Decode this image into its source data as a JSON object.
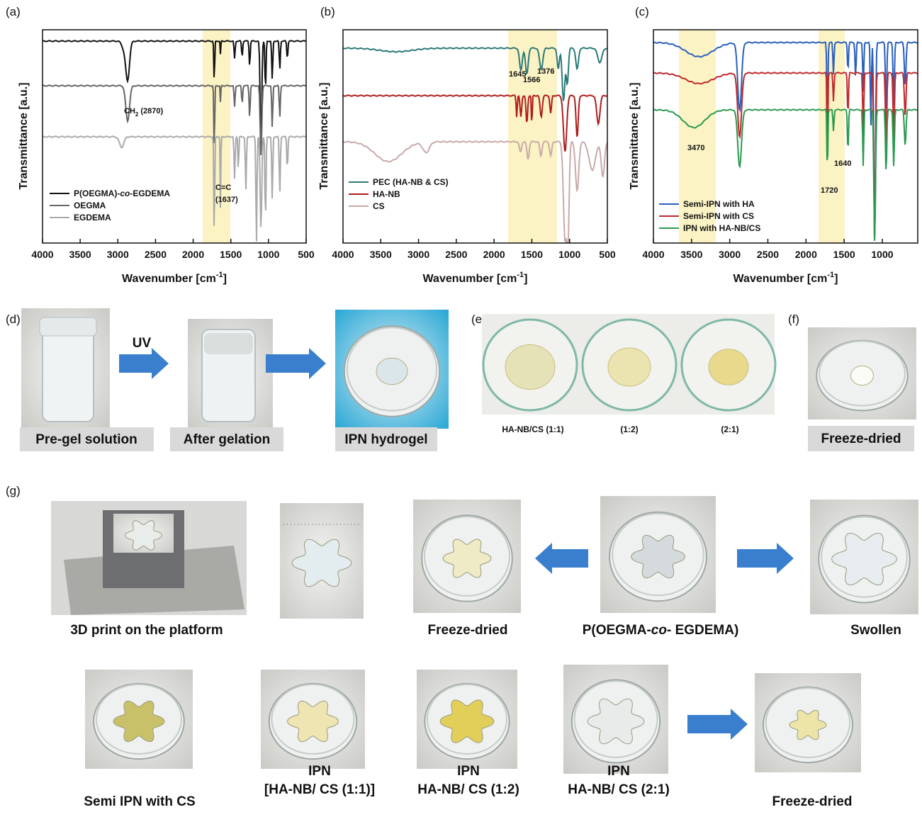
{
  "panels": [
    {
      "label": "(a)",
      "y_label": "Transmittance [a.u.]",
      "x_label": "Wavenumber [cm",
      "x_label_sup": "-1",
      "x_label_end": "]",
      "x_ticks": [
        4000,
        3500,
        3000,
        2500,
        2000,
        1500,
        1000,
        500
      ],
      "annotations": [
        [
          "CH",
          "2",
          " (2870)"
        ],
        [
          "C=C"
        ],
        [
          "(1637)"
        ]
      ],
      "legend": [
        [
          "P(OEGMA)-",
          "co",
          "-EGDEMA"
        ],
        [
          "OEGMA"
        ],
        [
          "EGDEMA"
        ]
      ]
    },
    {
      "label": "(b)",
      "y_label": "Transmittance [a.u.]",
      "x_label": "Wavenumber [cm",
      "x_label_sup": "-1",
      "x_label_end": "]",
      "x_ticks": [
        4000,
        3500,
        3000,
        2500,
        2000,
        1500,
        1000,
        500
      ],
      "annotations": [
        [
          "1645"
        ],
        [
          "1566"
        ],
        [
          "1376"
        ]
      ],
      "legend": [
        [
          "PEC (HA-NB & CS)"
        ],
        [
          "HA-NB"
        ],
        [
          "CS"
        ]
      ]
    },
    {
      "label": "(c)",
      "y_label": "Transmittance [a.u.]",
      "x_label": "Wavenumber [cm",
      "x_label_sup": "-1",
      "x_label_end": "]",
      "x_ticks": [
        4000,
        3500,
        3000,
        2500,
        2000,
        1500,
        1000
      ],
      "annotations": [
        [
          "3470"
        ],
        [
          "1640"
        ],
        [
          "1720"
        ]
      ],
      "legend": [
        [
          "Semi-IPN with HA"
        ],
        [
          "Semi-IPN with CS"
        ],
        [
          "IPN with HA-NB/CS"
        ]
      ]
    }
  ],
  "panel_d": {
    "label": "(d)",
    "arrow_label": "UV",
    "captions": [
      "Pre-gel solution",
      "After gelation",
      "IPN hydrogel"
    ]
  },
  "panel_e": {
    "label": "(e)",
    "captions": [
      "HA-NB/CS (1:1)",
      "(1:2)",
      "(2:1)"
    ]
  },
  "panel_f": {
    "label": "(f)",
    "caption": "Freeze-dried"
  },
  "panel_g": {
    "label": "(g)",
    "top_captions": [
      [
        "3D print on the platform"
      ],
      [
        "Freeze-dried"
      ],
      [
        "P(OEGMA-",
        "co",
        "- EGDEMA)"
      ],
      [
        "Swollen"
      ]
    ],
    "bottom_captions": [
      [
        "Semi IPN with CS"
      ],
      [
        "IPN",
        "[HA-NB/ CS (1:1)]"
      ],
      [
        "IPN",
        "HA-NB/ CS (1:2)"
      ],
      [
        "IPN",
        "HA-NB/ CS (2:1)"
      ],
      [
        "Freeze-dried"
      ]
    ]
  }
}
